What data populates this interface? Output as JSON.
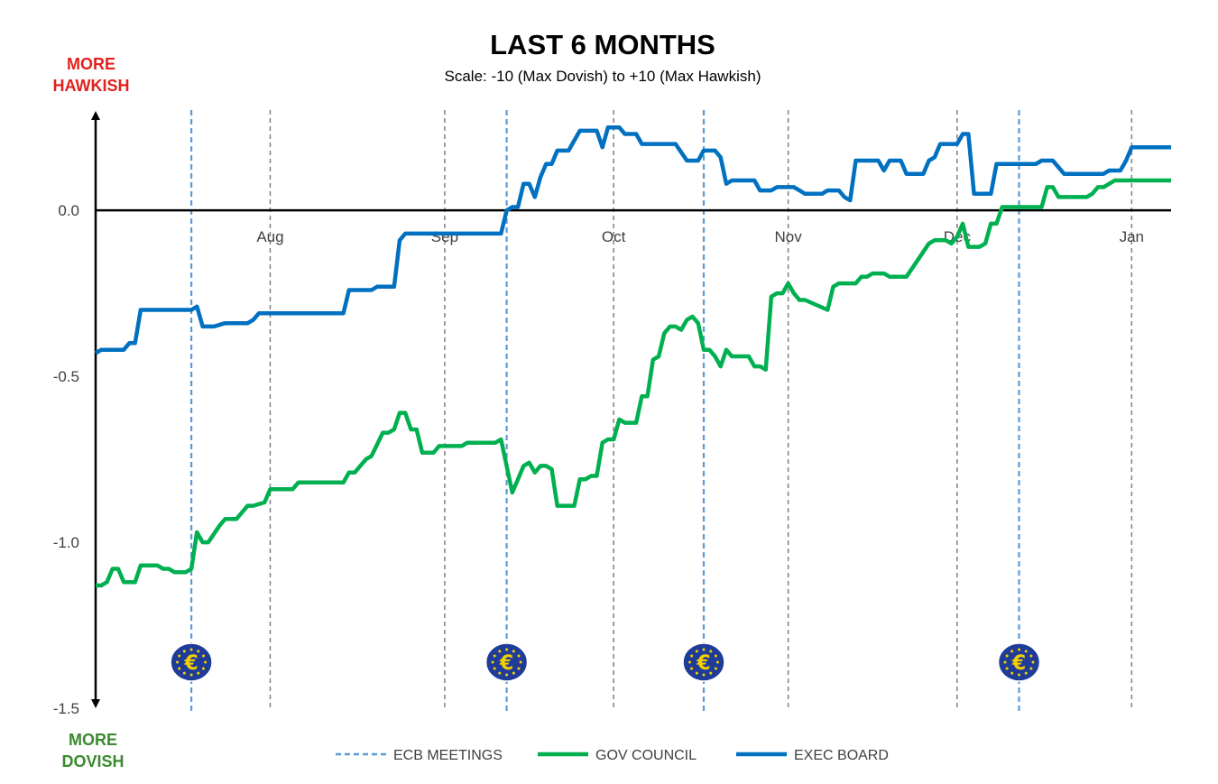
{
  "chart_data": {
    "type": "line",
    "title": "LAST 6 MONTHS",
    "subtitle": "Scale: -10 (Max Dovish)  to +10 (Max Hawkish)",
    "upper_label": [
      "MORE",
      "HAWKISH"
    ],
    "lower_label": [
      "MORE",
      "DOVISH"
    ],
    "colors": {
      "hawkish": "#e2211c",
      "dovish": "#3a8a2e",
      "gov": "#00b050",
      "exec": "#0070c0",
      "meeting": "#5b9bd5",
      "month": "#7f7f7f",
      "ecb_logo": "#1f3c99",
      "star": "#f5d000"
    },
    "x_start": "2024-07-01",
    "x_end": "2025-01-08",
    "ylim": [
      -1.5,
      0.4
    ],
    "yticks": [
      0.0,
      -0.5,
      -1.0,
      -1.5
    ],
    "ytick_labels": [
      "0.0",
      "-0.5",
      "-1.0",
      "-1.5"
    ],
    "month_ticks": [
      {
        "date": "2024-08-01",
        "label": "Aug"
      },
      {
        "date": "2024-09-01",
        "label": "Sep"
      },
      {
        "date": "2024-10-01",
        "label": "Oct"
      },
      {
        "date": "2024-11-01",
        "label": "Nov"
      },
      {
        "date": "2024-12-01",
        "label": "Dec"
      },
      {
        "date": "2025-01-01",
        "label": "Jan"
      }
    ],
    "ecb_meetings": [
      "2024-07-18",
      "2024-09-12",
      "2024-10-17",
      "2024-12-12"
    ],
    "ecb_icon": "ecb-euro-logo-icon",
    "legend": [
      {
        "label": "ECB MEETINGS",
        "style": "dashed"
      },
      {
        "label": "GOV COUNCIL",
        "style": "solid"
      },
      {
        "label": "EXEC BOARD",
        "style": "solid"
      }
    ],
    "series": [
      {
        "name": "GOV COUNCIL",
        "points": [
          [
            "2024-07-01",
            -1.13
          ],
          [
            "2024-07-02",
            -1.13
          ],
          [
            "2024-07-03",
            -1.12
          ],
          [
            "2024-07-04",
            -1.08
          ],
          [
            "2024-07-05",
            -1.08
          ],
          [
            "2024-07-06",
            -1.12
          ],
          [
            "2024-07-08",
            -1.12
          ],
          [
            "2024-07-09",
            -1.07
          ],
          [
            "2024-07-12",
            -1.07
          ],
          [
            "2024-07-13",
            -1.08
          ],
          [
            "2024-07-14",
            -1.08
          ],
          [
            "2024-07-15",
            -1.09
          ],
          [
            "2024-07-17",
            -1.09
          ],
          [
            "2024-07-18",
            -1.08
          ],
          [
            "2024-07-19",
            -0.97
          ],
          [
            "2024-07-20",
            -1.0
          ],
          [
            "2024-07-21",
            -1.0
          ],
          [
            "2024-07-23",
            -0.95
          ],
          [
            "2024-07-24",
            -0.93
          ],
          [
            "2024-07-26",
            -0.93
          ],
          [
            "2024-07-28",
            -0.89
          ],
          [
            "2024-07-29",
            -0.89
          ],
          [
            "2024-07-31",
            -0.88
          ],
          [
            "2024-08-01",
            -0.84
          ],
          [
            "2024-08-05",
            -0.84
          ],
          [
            "2024-08-06",
            -0.82
          ],
          [
            "2024-08-14",
            -0.82
          ],
          [
            "2024-08-15",
            -0.79
          ],
          [
            "2024-08-16",
            -0.79
          ],
          [
            "2024-08-18",
            -0.75
          ],
          [
            "2024-08-19",
            -0.74
          ],
          [
            "2024-08-21",
            -0.67
          ],
          [
            "2024-08-22",
            -0.67
          ],
          [
            "2024-08-23",
            -0.66
          ],
          [
            "2024-08-24",
            -0.61
          ],
          [
            "2024-08-25",
            -0.61
          ],
          [
            "2024-08-26",
            -0.66
          ],
          [
            "2024-08-27",
            -0.66
          ],
          [
            "2024-08-28",
            -0.73
          ],
          [
            "2024-08-30",
            -0.73
          ],
          [
            "2024-08-31",
            -0.71
          ],
          [
            "2024-09-04",
            -0.71
          ],
          [
            "2024-09-05",
            -0.7
          ],
          [
            "2024-09-10",
            -0.7
          ],
          [
            "2024-09-11",
            -0.69
          ],
          [
            "2024-09-13",
            -0.85
          ],
          [
            "2024-09-14",
            -0.81
          ],
          [
            "2024-09-15",
            -0.77
          ],
          [
            "2024-09-16",
            -0.76
          ],
          [
            "2024-09-17",
            -0.79
          ],
          [
            "2024-09-18",
            -0.77
          ],
          [
            "2024-09-19",
            -0.77
          ],
          [
            "2024-09-20",
            -0.78
          ],
          [
            "2024-09-21",
            -0.89
          ],
          [
            "2024-09-22",
            -0.89
          ],
          [
            "2024-09-24",
            -0.89
          ],
          [
            "2024-09-25",
            -0.81
          ],
          [
            "2024-09-26",
            -0.81
          ],
          [
            "2024-09-27",
            -0.8
          ],
          [
            "2024-09-28",
            -0.8
          ],
          [
            "2024-09-29",
            -0.7
          ],
          [
            "2024-09-30",
            -0.69
          ],
          [
            "2024-10-01",
            -0.69
          ],
          [
            "2024-10-02",
            -0.63
          ],
          [
            "2024-10-03",
            -0.64
          ],
          [
            "2024-10-05",
            -0.64
          ],
          [
            "2024-10-06",
            -0.56
          ],
          [
            "2024-10-07",
            -0.56
          ],
          [
            "2024-10-08",
            -0.45
          ],
          [
            "2024-10-09",
            -0.44
          ],
          [
            "2024-10-10",
            -0.37
          ],
          [
            "2024-10-11",
            -0.35
          ],
          [
            "2024-10-12",
            -0.35
          ],
          [
            "2024-10-13",
            -0.36
          ],
          [
            "2024-10-14",
            -0.33
          ],
          [
            "2024-10-15",
            -0.32
          ],
          [
            "2024-10-16",
            -0.34
          ],
          [
            "2024-10-17",
            -0.42
          ],
          [
            "2024-10-18",
            -0.42
          ],
          [
            "2024-10-19",
            -0.44
          ],
          [
            "2024-10-20",
            -0.47
          ],
          [
            "2024-10-21",
            -0.42
          ],
          [
            "2024-10-22",
            -0.44
          ],
          [
            "2024-10-25",
            -0.44
          ],
          [
            "2024-10-26",
            -0.47
          ],
          [
            "2024-10-27",
            -0.47
          ],
          [
            "2024-10-28",
            -0.48
          ],
          [
            "2024-10-29",
            -0.26
          ],
          [
            "2024-10-30",
            -0.25
          ],
          [
            "2024-10-31",
            -0.25
          ],
          [
            "2024-11-01",
            -0.22
          ],
          [
            "2024-11-02",
            -0.25
          ],
          [
            "2024-11-03",
            -0.27
          ],
          [
            "2024-11-04",
            -0.27
          ],
          [
            "2024-11-08",
            -0.3
          ],
          [
            "2024-11-09",
            -0.23
          ],
          [
            "2024-11-10",
            -0.22
          ],
          [
            "2024-11-13",
            -0.22
          ],
          [
            "2024-11-14",
            -0.2
          ],
          [
            "2024-11-15",
            -0.2
          ],
          [
            "2024-11-16",
            -0.19
          ],
          [
            "2024-11-18",
            -0.19
          ],
          [
            "2024-11-19",
            -0.2
          ],
          [
            "2024-11-22",
            -0.2
          ],
          [
            "2024-11-24",
            -0.15
          ],
          [
            "2024-11-26",
            -0.1
          ],
          [
            "2024-11-27",
            -0.09
          ],
          [
            "2024-11-29",
            -0.09
          ],
          [
            "2024-11-30",
            -0.1
          ],
          [
            "2024-12-01",
            -0.08
          ],
          [
            "2024-12-02",
            -0.04
          ],
          [
            "2024-12-03",
            -0.11
          ],
          [
            "2024-12-05",
            -0.11
          ],
          [
            "2024-12-06",
            -0.1
          ],
          [
            "2024-12-07",
            -0.04
          ],
          [
            "2024-12-08",
            -0.04
          ],
          [
            "2024-12-09",
            0.01
          ],
          [
            "2024-12-16",
            0.01
          ],
          [
            "2024-12-17",
            0.07
          ],
          [
            "2024-12-18",
            0.07
          ],
          [
            "2024-12-19",
            0.04
          ],
          [
            "2024-12-24",
            0.04
          ],
          [
            "2024-12-25",
            0.05
          ],
          [
            "2024-12-26",
            0.07
          ],
          [
            "2024-12-27",
            0.07
          ],
          [
            "2024-12-29",
            0.09
          ],
          [
            "2025-01-08",
            0.09
          ]
        ]
      },
      {
        "name": "EXEC BOARD",
        "points": [
          [
            "2024-07-01",
            -0.43
          ],
          [
            "2024-07-02",
            -0.42
          ],
          [
            "2024-07-06",
            -0.42
          ],
          [
            "2024-07-07",
            -0.4
          ],
          [
            "2024-07-08",
            -0.4
          ],
          [
            "2024-07-09",
            -0.3
          ],
          [
            "2024-07-18",
            -0.3
          ],
          [
            "2024-07-19",
            -0.29
          ],
          [
            "2024-07-20",
            -0.35
          ],
          [
            "2024-07-22",
            -0.35
          ],
          [
            "2024-07-24",
            -0.34
          ],
          [
            "2024-07-28",
            -0.34
          ],
          [
            "2024-07-29",
            -0.33
          ],
          [
            "2024-07-30",
            -0.31
          ],
          [
            "2024-08-14",
            -0.31
          ],
          [
            "2024-08-15",
            -0.24
          ],
          [
            "2024-08-19",
            -0.24
          ],
          [
            "2024-08-20",
            -0.23
          ],
          [
            "2024-08-23",
            -0.23
          ],
          [
            "2024-08-24",
            -0.09
          ],
          [
            "2024-08-25",
            -0.07
          ],
          [
            "2024-09-11",
            -0.07
          ],
          [
            "2024-09-12",
            0.0
          ],
          [
            "2024-09-13",
            0.01
          ],
          [
            "2024-09-14",
            0.01
          ],
          [
            "2024-09-15",
            0.08
          ],
          [
            "2024-09-16",
            0.08
          ],
          [
            "2024-09-17",
            0.04
          ],
          [
            "2024-09-18",
            0.1
          ],
          [
            "2024-09-19",
            0.14
          ],
          [
            "2024-09-20",
            0.14
          ],
          [
            "2024-09-21",
            0.18
          ],
          [
            "2024-09-22",
            0.18
          ],
          [
            "2024-09-23",
            0.18
          ],
          [
            "2024-09-25",
            0.24
          ],
          [
            "2024-09-28",
            0.24
          ],
          [
            "2024-09-29",
            0.19
          ],
          [
            "2024-09-30",
            0.25
          ],
          [
            "2024-10-02",
            0.25
          ],
          [
            "2024-10-03",
            0.23
          ],
          [
            "2024-10-05",
            0.23
          ],
          [
            "2024-10-06",
            0.2
          ],
          [
            "2024-10-12",
            0.2
          ],
          [
            "2024-10-14",
            0.15
          ],
          [
            "2024-10-16",
            0.15
          ],
          [
            "2024-10-17",
            0.18
          ],
          [
            "2024-10-19",
            0.18
          ],
          [
            "2024-10-20",
            0.16
          ],
          [
            "2024-10-21",
            0.08
          ],
          [
            "2024-10-22",
            0.09
          ],
          [
            "2024-10-23",
            0.09
          ],
          [
            "2024-10-26",
            0.09
          ],
          [
            "2024-10-27",
            0.06
          ],
          [
            "2024-10-29",
            0.06
          ],
          [
            "2024-10-30",
            0.07
          ],
          [
            "2024-11-02",
            0.07
          ],
          [
            "2024-11-03",
            0.06
          ],
          [
            "2024-11-04",
            0.05
          ],
          [
            "2024-11-05",
            0.05
          ],
          [
            "2024-11-06",
            0.05
          ],
          [
            "2024-11-07",
            0.05
          ],
          [
            "2024-11-08",
            0.06
          ],
          [
            "2024-11-10",
            0.06
          ],
          [
            "2024-11-11",
            0.04
          ],
          [
            "2024-11-12",
            0.03
          ],
          [
            "2024-11-13",
            0.15
          ],
          [
            "2024-11-17",
            0.15
          ],
          [
            "2024-11-18",
            0.12
          ],
          [
            "2024-11-19",
            0.15
          ],
          [
            "2024-11-21",
            0.15
          ],
          [
            "2024-11-22",
            0.11
          ],
          [
            "2024-11-25",
            0.11
          ],
          [
            "2024-11-26",
            0.15
          ],
          [
            "2024-11-27",
            0.16
          ],
          [
            "2024-11-28",
            0.2
          ],
          [
            "2024-12-01",
            0.2
          ],
          [
            "2024-12-02",
            0.23
          ],
          [
            "2024-12-03",
            0.23
          ],
          [
            "2024-12-04",
            0.05
          ],
          [
            "2024-12-07",
            0.05
          ],
          [
            "2024-12-08",
            0.14
          ],
          [
            "2024-12-15",
            0.14
          ],
          [
            "2024-12-16",
            0.15
          ],
          [
            "2024-12-17",
            0.15
          ],
          [
            "2024-12-18",
            0.15
          ],
          [
            "2024-12-20",
            0.11
          ],
          [
            "2024-12-27",
            0.11
          ],
          [
            "2024-12-28",
            0.12
          ],
          [
            "2024-12-30",
            0.12
          ],
          [
            "2024-12-31",
            0.15
          ],
          [
            "2025-01-01",
            0.19
          ],
          [
            "2025-01-08",
            0.19
          ]
        ]
      }
    ]
  }
}
